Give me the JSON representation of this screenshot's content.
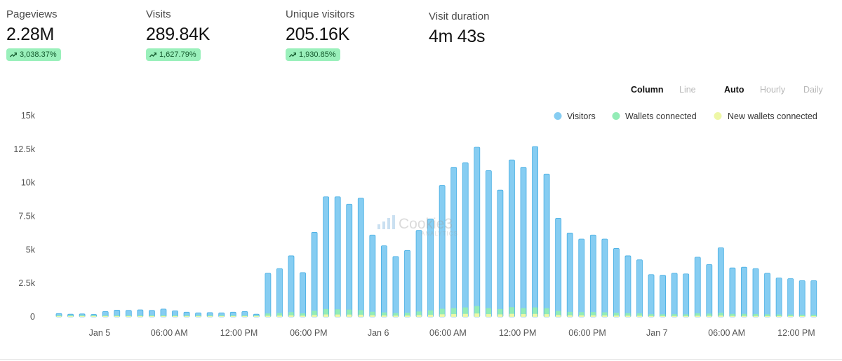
{
  "stats": [
    {
      "label": "Pageviews",
      "value": "2.28M",
      "change": "3,038.37%"
    },
    {
      "label": "Visits",
      "value": "289.84K",
      "change": "1,627.79%"
    },
    {
      "label": "Unique visitors",
      "value": "205.16K",
      "change": "1,930.85%"
    },
    {
      "label": "Visit duration",
      "value": "4m 43s"
    }
  ],
  "controls": {
    "chart_type": {
      "column": "Column",
      "line": "Line",
      "selected": "Column"
    },
    "granularity": {
      "auto": "Auto",
      "hourly": "Hourly",
      "daily": "Daily",
      "selected": "Auto"
    }
  },
  "colors": {
    "visitors": "#86cdf2",
    "visitors_stroke": "#47aee3",
    "wallets": "#93ecb6",
    "new_wallets": "#eef7a6",
    "badge_bg": "#9af0bb",
    "axis_text": "#555555"
  },
  "watermark": {
    "name": "Cookie3",
    "sub": "ANALYTICS"
  },
  "chart_data": {
    "type": "bar",
    "stacked": true,
    "ylim": [
      0,
      15000
    ],
    "yticks": [
      0,
      2500,
      5000,
      7500,
      10000,
      12500,
      15000
    ],
    "ytick_labels": [
      "0",
      "2.5k",
      "5k",
      "7.5k",
      "10k",
      "12.5k",
      "15k"
    ],
    "xtick_labels": [
      {
        "label": "Jan 5",
        "at_bar": 3.5
      },
      {
        "label": "06:00 AM",
        "at_bar": 9.5
      },
      {
        "label": "12:00 PM",
        "at_bar": 15.5
      },
      {
        "label": "06:00 PM",
        "at_bar": 21.5
      },
      {
        "label": "Jan 6",
        "at_bar": 27.5
      },
      {
        "label": "06:00 AM",
        "at_bar": 33.5
      },
      {
        "label": "12:00 PM",
        "at_bar": 39.5
      },
      {
        "label": "06:00 PM",
        "at_bar": 45.5
      },
      {
        "label": "Jan 7",
        "at_bar": 51.5
      },
      {
        "label": "06:00 AM",
        "at_bar": 57.5
      },
      {
        "label": "12:00 PM",
        "at_bar": 63.5
      }
    ],
    "legend_position": "top-right",
    "grid": false,
    "series": [
      {
        "name": "Visitors",
        "values": [
          250,
          200,
          220,
          180,
          400,
          500,
          480,
          520,
          480,
          580,
          450,
          350,
          300,
          320,
          300,
          350,
          400,
          200,
          3250,
          3600,
          4550,
          3300,
          6300,
          8950,
          8950,
          8400,
          8850,
          6100,
          5300,
          4500,
          4950,
          6450,
          7300,
          9800,
          11150,
          11500,
          12650,
          10900,
          9450,
          11700,
          11150,
          12700,
          10650,
          7350,
          6250,
          5800,
          6100,
          5800,
          5100,
          4550,
          4250,
          3150,
          3100,
          3250,
          3200,
          4450,
          3900,
          5150,
          3650,
          3700,
          3600,
          3250,
          2900,
          2850,
          2700,
          2700
        ]
      },
      {
        "name": "Wallets connected",
        "values": [
          30,
          25,
          25,
          25,
          40,
          50,
          50,
          55,
          50,
          60,
          45,
          40,
          35,
          35,
          35,
          40,
          45,
          30,
          250,
          280,
          350,
          260,
          450,
          580,
          560,
          540,
          500,
          380,
          330,
          280,
          300,
          400,
          480,
          600,
          650,
          700,
          800,
          650,
          580,
          720,
          650,
          700,
          640,
          440,
          370,
          350,
          360,
          340,
          300,
          270,
          260,
          200,
          190,
          200,
          190,
          260,
          240,
          300,
          220,
          220,
          210,
          190,
          180,
          170,
          160,
          160
        ]
      },
      {
        "name": "New wallets connected",
        "values": [
          10,
          8,
          8,
          8,
          12,
          15,
          15,
          16,
          15,
          18,
          14,
          12,
          10,
          10,
          10,
          12,
          13,
          10,
          80,
          90,
          110,
          85,
          140,
          180,
          175,
          170,
          160,
          120,
          105,
          90,
          95,
          130,
          150,
          190,
          205,
          220,
          250,
          205,
          185,
          225,
          205,
          220,
          200,
          140,
          115,
          110,
          112,
          105,
          95,
          85,
          80,
          65,
          62,
          65,
          62,
          82,
          76,
          95,
          70,
          70,
          66,
          60,
          57,
          54,
          50,
          50
        ]
      }
    ]
  }
}
